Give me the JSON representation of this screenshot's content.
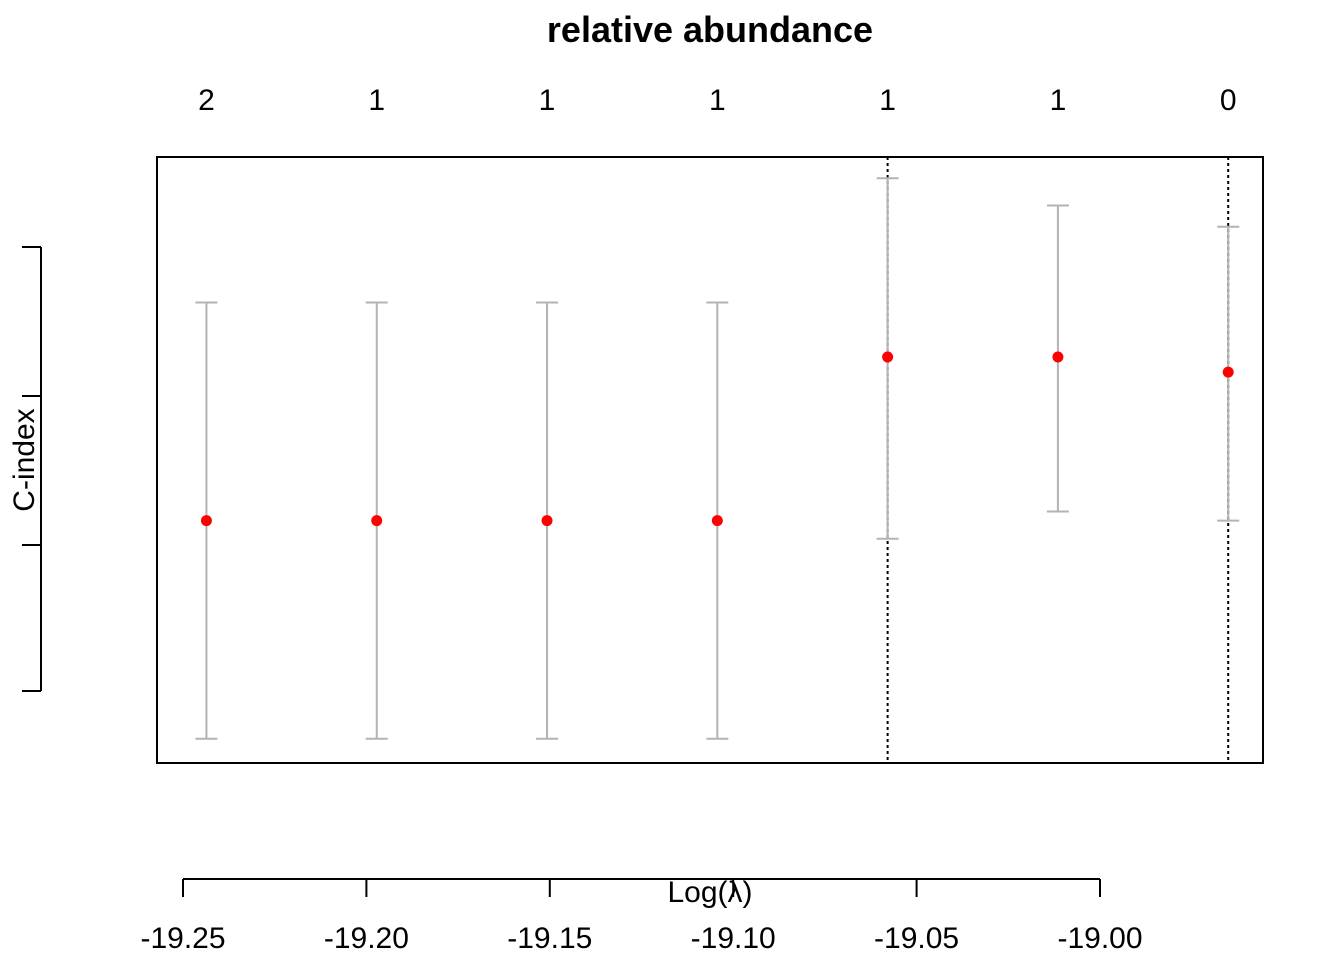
{
  "chart_data": {
    "type": "scatter",
    "title": "relative abundance",
    "xlabel": "Log(λ)",
    "ylabel": "C-index",
    "x_ticks": [
      -19.25,
      -19.2,
      -19.15,
      -19.1,
      -19.05,
      -19.0
    ],
    "x_tick_labels": [
      "-19.25",
      "-19.20",
      "-19.15",
      "-19.10",
      "-19.05",
      "-19.00"
    ],
    "xlim": [
      -19.261,
      -18.959
    ],
    "ylim": [
      0.0,
      1.0
    ],
    "y_ticks_labeled": false,
    "top_labels": [
      "2",
      "1",
      "1",
      "1",
      "1",
      "1",
      "0"
    ],
    "series": [
      {
        "x": [
          -19.2475,
          -19.201,
          -19.1545,
          -19.108,
          -19.0615,
          -19.015,
          -18.9685
        ],
        "y": [
          0.4,
          0.4,
          0.4,
          0.4,
          0.67,
          0.67,
          0.645
        ],
        "lower": [
          0.04,
          0.04,
          0.04,
          0.04,
          0.37,
          0.415,
          0.4
        ],
        "upper": [
          0.76,
          0.76,
          0.76,
          0.76,
          0.965,
          0.92,
          0.885
        ]
      }
    ],
    "vlines_x": [
      -19.0615,
      -18.9685
    ],
    "colors": {
      "point": "#ff0000",
      "errorbar": "#b3b3b3",
      "vline": "#000000"
    },
    "grid": false,
    "legend": "none"
  }
}
